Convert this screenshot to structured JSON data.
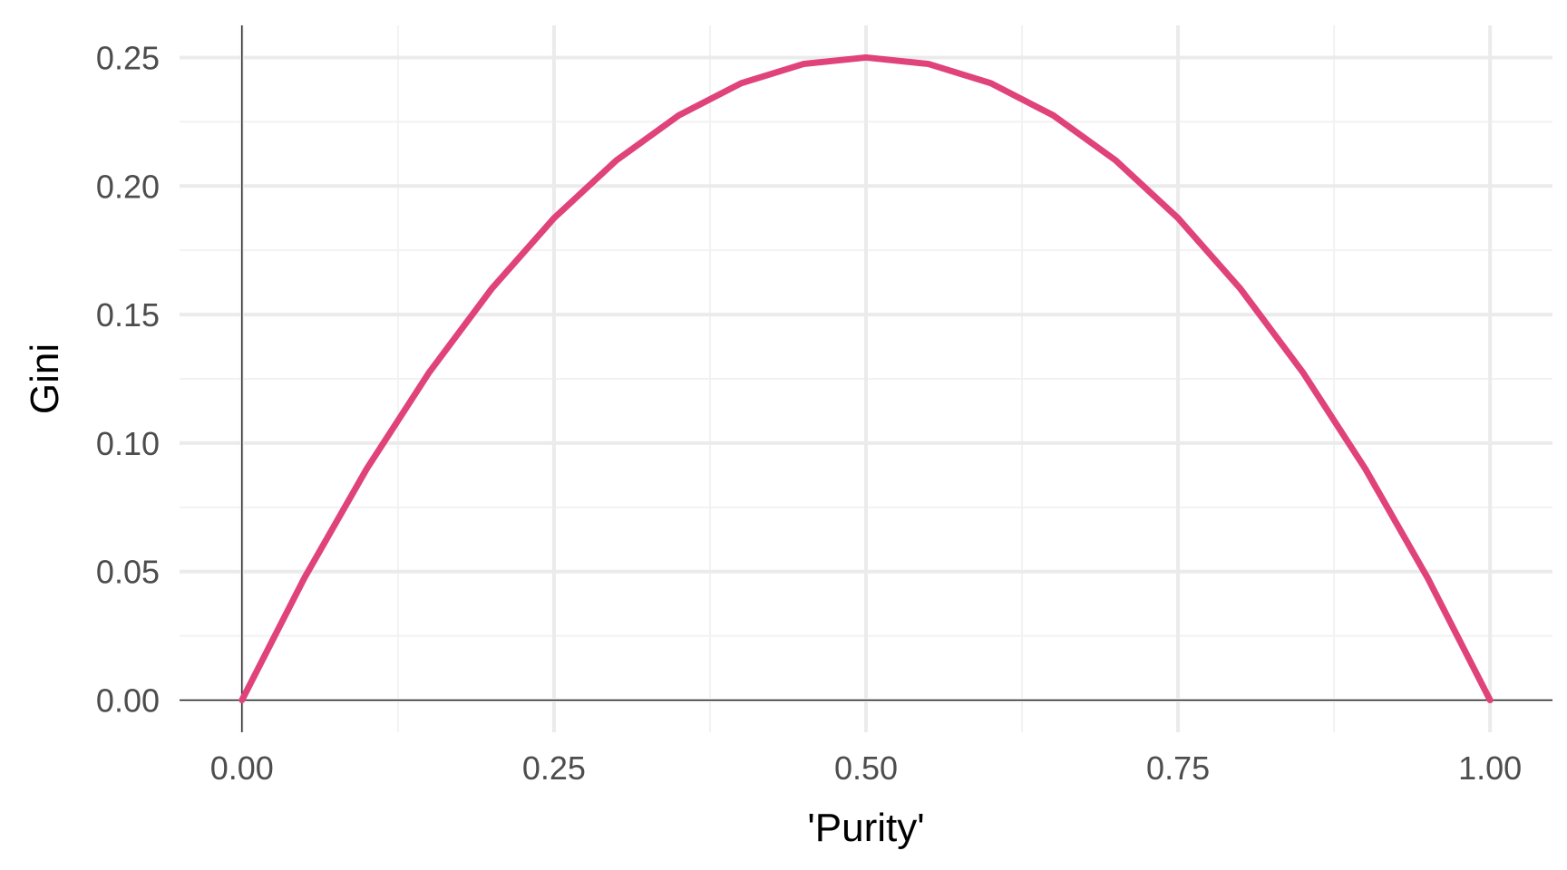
{
  "chart_data": {
    "type": "line",
    "title": "",
    "xlabel": "'Purity'",
    "ylabel": "Gini",
    "xlim": [
      0,
      1
    ],
    "ylim": [
      0,
      0.25
    ],
    "x_ticks": [
      0.0,
      0.25,
      0.5,
      0.75,
      1.0
    ],
    "x_tick_labels": [
      "0.00",
      "0.25",
      "0.50",
      "0.75",
      "1.00"
    ],
    "y_ticks": [
      0.0,
      0.05,
      0.1,
      0.15,
      0.2,
      0.25
    ],
    "y_tick_labels": [
      "0.00",
      "0.05",
      "0.10",
      "0.15",
      "0.20",
      "0.25"
    ],
    "grid": true,
    "legend": "none",
    "series": [
      {
        "color": "#e0427a",
        "x": [
          0.0,
          0.05,
          0.1,
          0.15,
          0.2,
          0.25,
          0.3,
          0.35,
          0.4,
          0.45,
          0.5,
          0.55,
          0.6,
          0.65,
          0.7,
          0.75,
          0.8,
          0.85,
          0.9,
          0.95,
          1.0
        ],
        "y": [
          0.0,
          0.0475,
          0.09,
          0.1275,
          0.16,
          0.1875,
          0.21,
          0.2275,
          0.24,
          0.2475,
          0.25,
          0.2475,
          0.24,
          0.2275,
          0.21,
          0.1875,
          0.16,
          0.1275,
          0.09,
          0.0475,
          0.0
        ]
      }
    ]
  },
  "colors": {
    "line": "#e0427a",
    "major_grid": "#ebebeb",
    "minor_grid": "#f2f2f2",
    "axis_line": "#000000",
    "tick_text": "#4d4d4d",
    "title_text": "#000000"
  }
}
